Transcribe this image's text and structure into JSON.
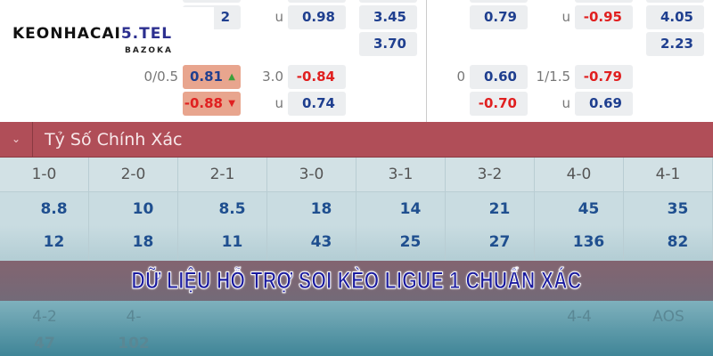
{
  "logo": {
    "text_main": "KEONHACAI",
    "text_accent": "5.TEL",
    "sub": "BAZOKA"
  },
  "odds_top": {
    "left": {
      "partial": "2",
      "u1": "u",
      "v1": "0.98",
      "x1": "3.45",
      "x2": "3.70",
      "hcap": "0/0.5",
      "h1": "0.81",
      "h2": "-0.88",
      "ou": "3.0",
      "o1": "-0.84",
      "u2": "u",
      "o2": "0.74"
    },
    "right": {
      "v1": "0.79",
      "u1": "u",
      "o1": "-0.95",
      "x1": "4.05",
      "x2": "2.23",
      "hcap": "0",
      "h1": "0.60",
      "h2": "-0.70",
      "ou": "1/1.5",
      "o1b": "-0.79",
      "u2": "u",
      "o2": "0.69"
    }
  },
  "section": {
    "title": "Tỷ Số Chính Xác",
    "chevron": "chevron-down-icon"
  },
  "scores": {
    "headers": [
      "1-0",
      "2-0",
      "2-1",
      "3-0",
      "3-1",
      "3-2",
      "4-0",
      "4-1"
    ],
    "row1": [
      "8.8",
      "10",
      "8.5",
      "18",
      "14",
      "21",
      "45",
      "35"
    ],
    "row2": [
      "12",
      "18",
      "11",
      "43",
      "25",
      "27",
      "136",
      "82"
    ]
  },
  "bottom_row": {
    "h1": "4-2",
    "h2": "4-",
    "h7": "4-4",
    "h8": "AOS",
    "v1": "47",
    "v2": "102"
  },
  "banner": "DỮ LIỆU HỖ TRỢ SOI KÈO LIGUE 1 CHUẨN XÁC",
  "colors": {
    "section_header": "#b04e58",
    "odds_blue": "#1f3f8f",
    "odds_red": "#e02020",
    "highlight": "#e8a58e"
  }
}
